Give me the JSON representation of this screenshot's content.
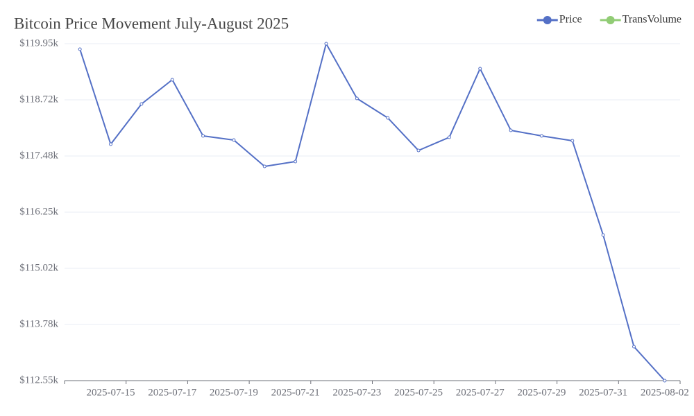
{
  "chart_data": {
    "type": "line",
    "title": "Bitcoin Price Movement July-August 2025",
    "categories": [
      null,
      "2025-07-15",
      null,
      "2025-07-17",
      null,
      "2025-07-19",
      null,
      "2025-07-21",
      null,
      "2025-07-23",
      null,
      "2025-07-25",
      null,
      "2025-07-27",
      null,
      "2025-07-29",
      null,
      "2025-07-31",
      null,
      "2025-08-02"
    ],
    "series": [
      {
        "name": "Price",
        "color": "#5470c6",
        "values": [
          119828,
          117742,
          118625,
          119158,
          117925,
          117834,
          117255,
          117362,
          119950,
          118747,
          118321,
          117605,
          117894,
          119402,
          118047,
          117925,
          117818,
          115748,
          113296,
          112550
        ]
      },
      {
        "name": "TransVolume",
        "color": "#91cc75",
        "values": [
          null,
          null,
          null,
          null,
          null,
          null,
          null,
          null,
          null,
          null,
          null,
          null,
          null,
          null,
          null,
          null,
          null,
          null,
          null,
          null
        ]
      }
    ],
    "ylim": [
      112550,
      119950
    ],
    "yticks": [
      {
        "value": 112550,
        "label": "$112.55k"
      },
      {
        "value": 113783.33,
        "label": "$113.78k"
      },
      {
        "value": 115016.67,
        "label": "$115.02k"
      },
      {
        "value": 116250,
        "label": "$116.25k"
      },
      {
        "value": 117483.33,
        "label": "$117.48k"
      },
      {
        "value": 118716.67,
        "label": "$118.72k"
      },
      {
        "value": 119950,
        "label": "$119.95k"
      }
    ],
    "grid": true,
    "legend": "top-right"
  }
}
